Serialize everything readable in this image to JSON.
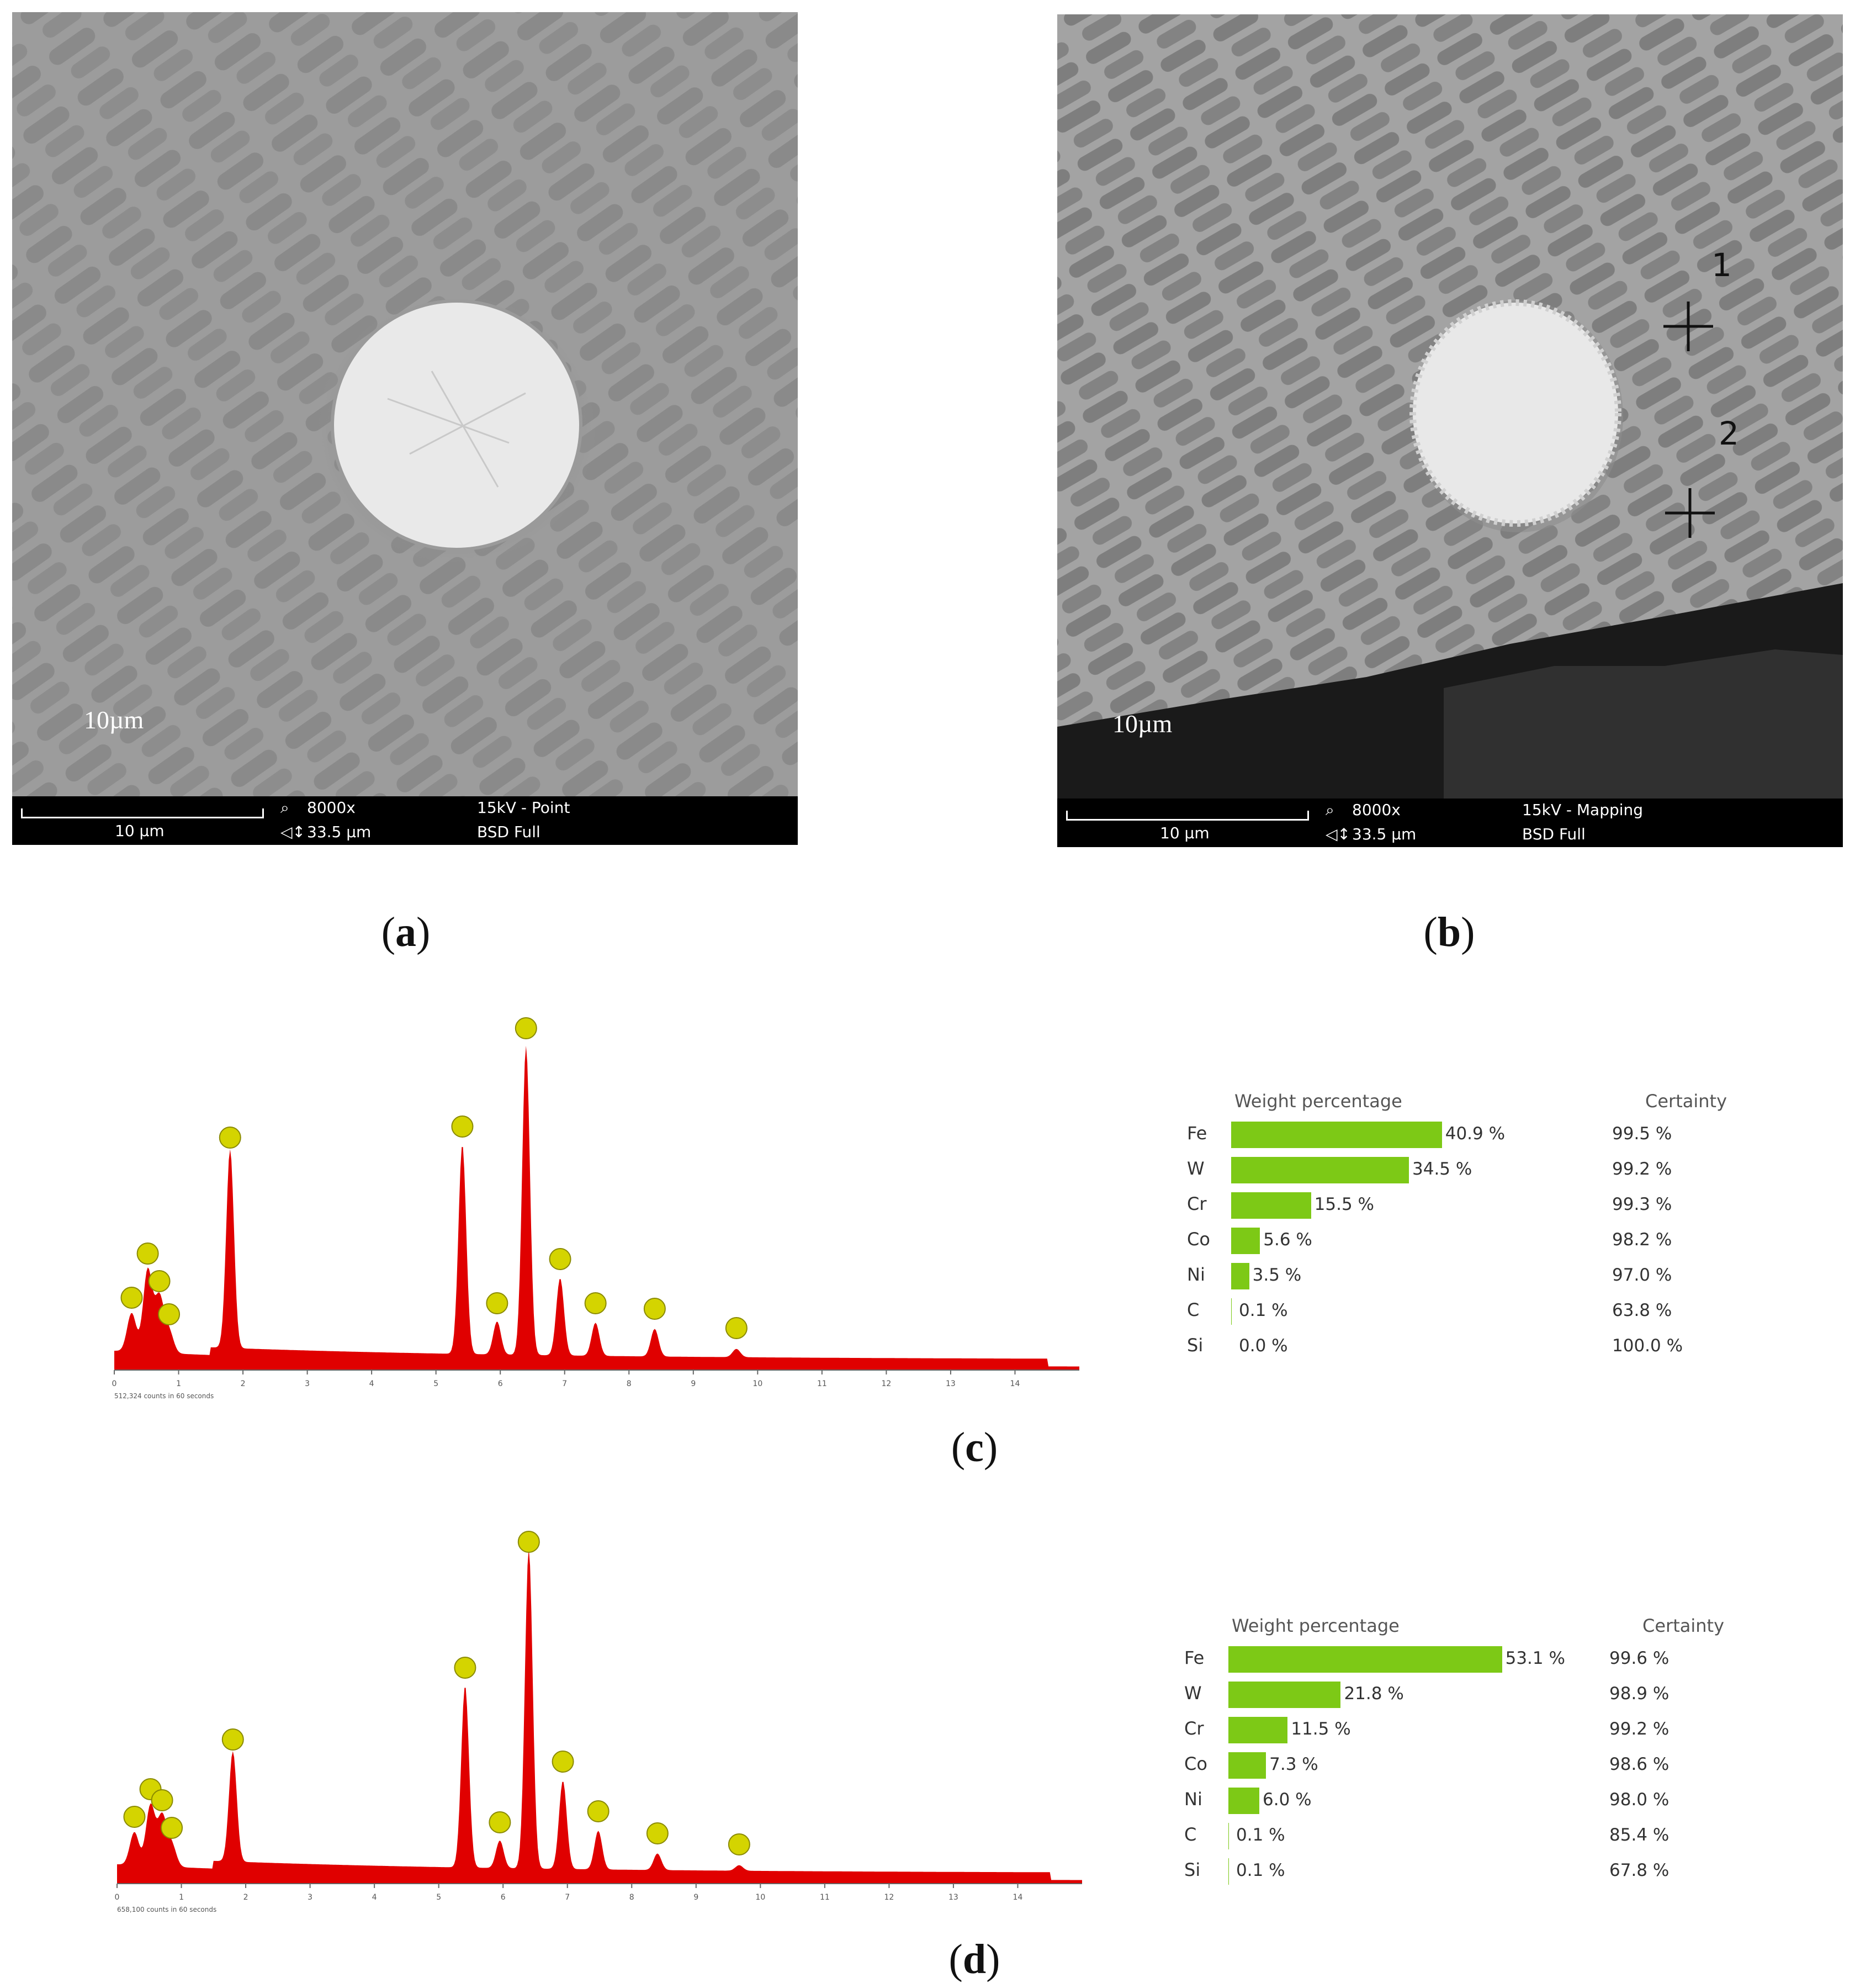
{
  "panel_a": {
    "caption_letter": "a",
    "overlay_label": "10µm",
    "scale_bar_label": "10 µm",
    "magnification": "8000x",
    "field_width": "33.5 µm",
    "mode": "15kV - Point",
    "detector": "BSD Full",
    "magnifier_icon": "magnifier-icon",
    "width_icon": "field-width-icon"
  },
  "panel_b": {
    "caption_letter": "b",
    "overlay_label": "10µm",
    "scale_bar_label": "10 µm",
    "magnification": "8000x",
    "field_width": "33.5 µm",
    "mode": "15kV - Mapping",
    "detector": "BSD Full",
    "point_labels": [
      "1",
      "2"
    ]
  },
  "panel_c": {
    "caption_letter": "c",
    "spectrum_footer": "512,324 counts in 60 seconds",
    "x_ticks": [
      "0",
      "1",
      "2",
      "3",
      "4",
      "5",
      "6",
      "7",
      "8",
      "9",
      "10",
      "11",
      "12",
      "13",
      "14"
    ],
    "table": {
      "header_weight": "Weight percentage",
      "header_certainty": "Certainty",
      "rows": [
        {
          "element": "Fe",
          "weight": 40.9,
          "weight_label": "40.9 %",
          "certainty": "99.5 %"
        },
        {
          "element": "W",
          "weight": 34.5,
          "weight_label": "34.5 %",
          "certainty": "99.2 %"
        },
        {
          "element": "Cr",
          "weight": 15.5,
          "weight_label": "15.5 %",
          "certainty": "99.3 %"
        },
        {
          "element": "Co",
          "weight": 5.6,
          "weight_label": "5.6 %",
          "certainty": "98.2 %"
        },
        {
          "element": "Ni",
          "weight": 3.5,
          "weight_label": "3.5 %",
          "certainty": "97.0 %"
        },
        {
          "element": "C",
          "weight": 0.1,
          "weight_label": "0.1 %",
          "certainty": "63.8 %"
        },
        {
          "element": "Si",
          "weight": 0.0,
          "weight_label": "0.0 %",
          "certainty": "100.0 %"
        }
      ]
    }
  },
  "panel_d": {
    "caption_letter": "d",
    "spectrum_footer": "658,100 counts in 60 seconds",
    "x_ticks": [
      "0",
      "1",
      "2",
      "3",
      "4",
      "5",
      "6",
      "7",
      "8",
      "9",
      "10",
      "11",
      "12",
      "13",
      "14"
    ],
    "table": {
      "header_weight": "Weight percentage",
      "header_certainty": "Certainty",
      "rows": [
        {
          "element": "Fe",
          "weight": 53.1,
          "weight_label": "53.1 %",
          "certainty": "99.6 %"
        },
        {
          "element": "W",
          "weight": 21.8,
          "weight_label": "21.8 %",
          "certainty": "98.9 %"
        },
        {
          "element": "Cr",
          "weight": 11.5,
          "weight_label": "11.5 %",
          "certainty": "99.2 %"
        },
        {
          "element": "Co",
          "weight": 7.3,
          "weight_label": "7.3 %",
          "certainty": "98.6 %"
        },
        {
          "element": "Ni",
          "weight": 6.0,
          "weight_label": "6.0 %",
          "certainty": "98.0 %"
        },
        {
          "element": "C",
          "weight": 0.1,
          "weight_label": "0.1 %",
          "certainty": "85.4 %"
        },
        {
          "element": "Si",
          "weight": 0.1,
          "weight_label": "0.1 %",
          "certainty": "67.8 %"
        }
      ]
    }
  },
  "chart_data": [
    {
      "type": "area",
      "x_range": [
        0,
        15
      ],
      "x_ticks": [
        0,
        1,
        2,
        3,
        4,
        5,
        6,
        7,
        8,
        9,
        10,
        11,
        12,
        13,
        14
      ],
      "peaks_keV": [
        0.27,
        0.52,
        0.7,
        0.85,
        1.8,
        5.41,
        5.95,
        6.4,
        6.93,
        7.48,
        8.4,
        9.67
      ],
      "grid": false
    },
    {
      "type": "area",
      "x_range": [
        0,
        15
      ],
      "x_ticks": [
        0,
        1,
        2,
        3,
        4,
        5,
        6,
        7,
        8,
        9,
        10,
        11,
        12,
        13,
        14
      ],
      "peaks_keV": [
        0.27,
        0.52,
        0.7,
        0.85,
        1.8,
        5.41,
        5.95,
        6.4,
        6.93,
        7.48,
        8.4,
        9.67
      ],
      "grid": false
    },
    {
      "type": "bar",
      "categories": [
        "Fe",
        "W",
        "Cr",
        "Co",
        "Ni",
        "C",
        "Si"
      ],
      "series": [
        {
          "name": "Weight percentage",
          "values": [
            40.9,
            34.5,
            15.5,
            5.6,
            3.5,
            0.1,
            0.0
          ]
        }
      ]
    },
    {
      "type": "bar",
      "categories": [
        "Fe",
        "W",
        "Cr",
        "Co",
        "Ni",
        "C",
        "Si"
      ],
      "series": [
        {
          "name": "Weight percentage",
          "values": [
            53.1,
            21.8,
            11.5,
            7.3,
            6.0,
            0.1,
            0.1
          ]
        }
      ]
    }
  ],
  "colors": {
    "spectrum_fill": "#e00000",
    "weight_bar": "#7dc916",
    "peak_marker": "#d4d400"
  }
}
